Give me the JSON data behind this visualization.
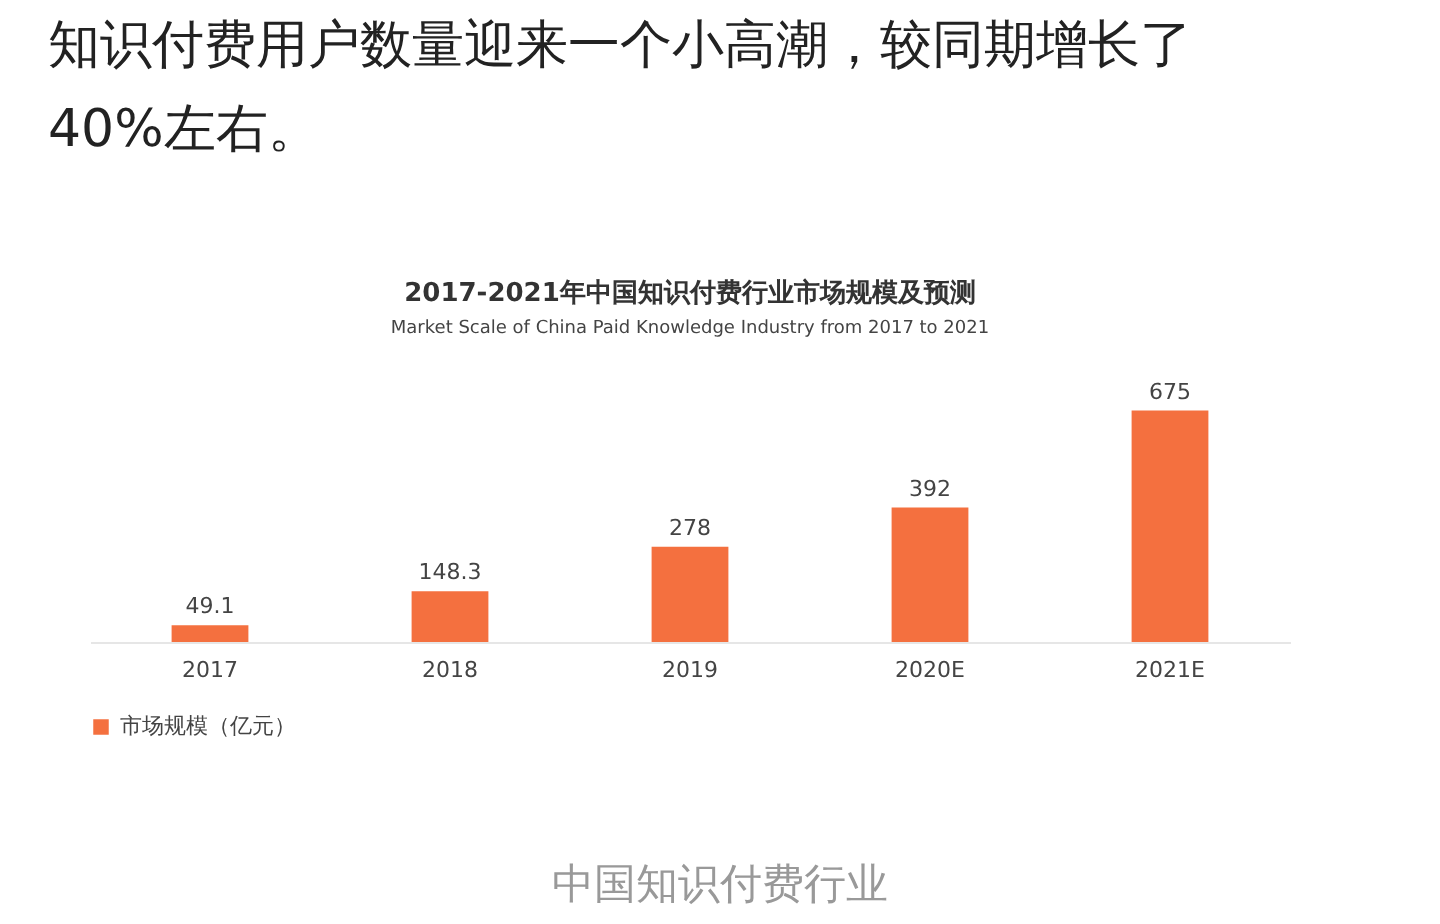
{
  "chart_data": {
    "type": "bar",
    "title": "2017-2021年中国知识付费行业市场规模及预测",
    "subtitle": "Market Scale of China Paid Knowledge Industry from 2017 to 2021",
    "categories": [
      "2017",
      "2018",
      "2019",
      "2020E",
      "2021E"
    ],
    "series": [
      {
        "name": "市场规模（亿元）",
        "color": "#f4703f",
        "values": [
          49.1,
          148.3,
          278,
          392,
          675
        ]
      }
    ],
    "data_labels": true,
    "tick_labels": "x",
    "legend": "bottom",
    "grid": false,
    "annotations": [
      "知识付费用户数量迎来一个小高潮，较同期增长了40%左右。",
      "中国知识付费行业"
    ]
  }
}
